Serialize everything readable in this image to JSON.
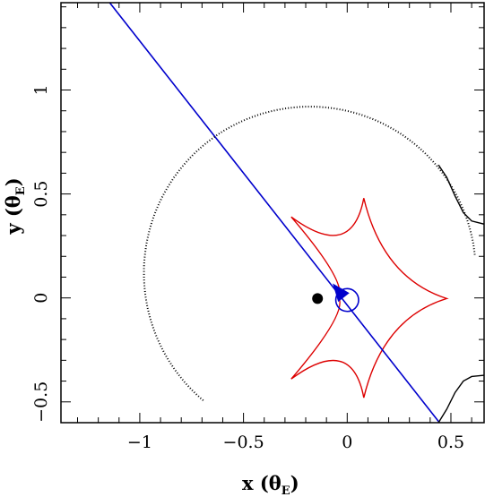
{
  "chart_data": {
    "type": "line",
    "title": "",
    "xlabel": {
      "main": "x (θ",
      "sub": "E",
      "close": ")"
    },
    "ylabel": {
      "main": "y (θ",
      "sub": "E",
      "close": ")"
    },
    "xlim": [
      -1.38,
      0.66
    ],
    "ylim": [
      -0.6,
      1.42
    ],
    "xticks": [
      {
        "value": -1,
        "label": "−1"
      },
      {
        "value": -0.5,
        "label": "−0.5"
      },
      {
        "value": 0,
        "label": "0"
      },
      {
        "value": 0.5,
        "label": "0.5"
      }
    ],
    "yticks": [
      {
        "value": -0.5,
        "label": "−0.5"
      },
      {
        "value": 0,
        "label": "0"
      },
      {
        "value": 0.5,
        "label": "0.5"
      },
      {
        "value": 1,
        "label": "1"
      }
    ],
    "grid": false,
    "legend": "none",
    "colors": {
      "caustic": "#dd0000",
      "trajectory": "#0000cc",
      "critical": "#000000",
      "lens": "#000000"
    },
    "series": [
      {
        "kind": "caustic",
        "cusps": [
          [
            -0.27,
            0.39
          ],
          [
            0.08,
            0.48
          ],
          [
            0.48,
            -0.003
          ],
          [
            0.08,
            -0.48
          ],
          [
            -0.27,
            -0.39
          ],
          [
            -0.04,
            0.0
          ]
        ],
        "curvature": [
          0.6,
          0.6,
          0.6,
          0.6,
          0.6,
          0.6
        ]
      },
      {
        "kind": "trajectory",
        "points": [
          [
            -1.145,
            1.42
          ],
          [
            0.445,
            -0.6
          ]
        ]
      },
      {
        "kind": "source",
        "center": [
          0.0,
          -0.01
        ],
        "radius": 0.055
      },
      {
        "kind": "trajectory-arrow",
        "tip": [
          -0.07,
          0.07
        ],
        "direction": [
          -0.619,
          0.785
        ]
      },
      {
        "kind": "lens",
        "points": [
          [
            -0.143,
            -0.003
          ]
        ]
      },
      {
        "kind": "critical-curve",
        "center": [
          -0.18,
          0.12
        ],
        "radius": 0.8,
        "arc_from_deg": -130,
        "arc_to_deg": 6
      },
      {
        "kind": "critical-curve",
        "points": [
          [
            0.44,
            0.64
          ],
          [
            0.48,
            0.58
          ],
          [
            0.52,
            0.49
          ],
          [
            0.56,
            0.41
          ],
          [
            0.6,
            0.37
          ],
          [
            0.66,
            0.355
          ]
        ]
      },
      {
        "kind": "critical-curve",
        "points": [
          [
            0.44,
            -0.6
          ],
          [
            0.48,
            -0.535
          ],
          [
            0.52,
            -0.455
          ],
          [
            0.56,
            -0.4
          ],
          [
            0.6,
            -0.378
          ],
          [
            0.66,
            -0.372
          ]
        ]
      }
    ]
  }
}
